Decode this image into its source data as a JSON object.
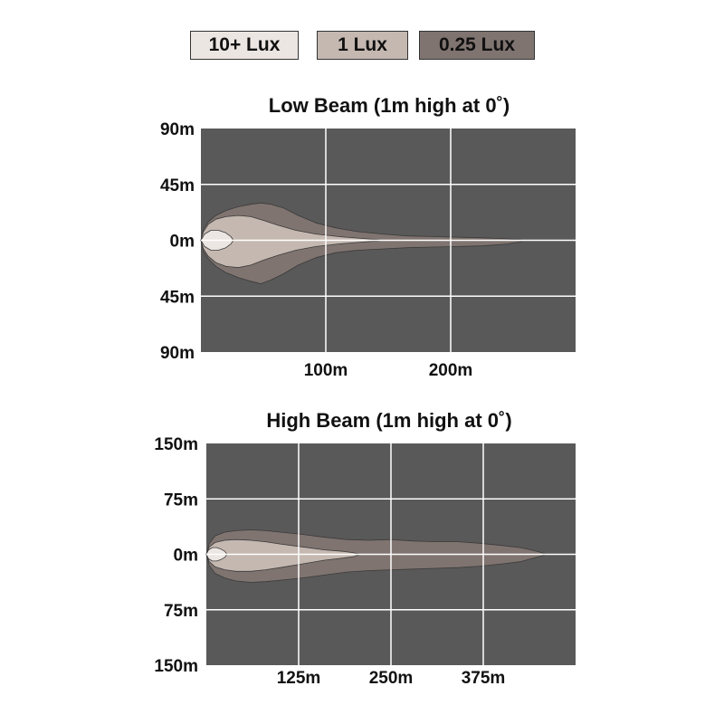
{
  "legend": {
    "items": [
      {
        "label": "10+ Lux",
        "color": "#ece6e2"
      },
      {
        "label": "1 Lux",
        "color": "#c4b8b1"
      },
      {
        "label": "0.25 Lux",
        "color": "#807470"
      }
    ]
  },
  "colors": {
    "plot_background": "#595959",
    "gridline": "#ffffff",
    "lux_10": "#ece6e2",
    "lux_1": "#c4b8b1",
    "lux_025": "#807470"
  },
  "chart_data": [
    {
      "type": "area",
      "title": "Low Beam (1m high at 0˚)",
      "xlim": [
        0,
        300
      ],
      "ylim": [
        -90,
        90
      ],
      "x_ticks": [
        100,
        200
      ],
      "x_tick_labels": [
        "100m",
        "200m"
      ],
      "y_ticks": [
        90,
        45,
        0,
        -45,
        -90
      ],
      "y_tick_labels": [
        "90m",
        "45m",
        "0m",
        "45m",
        "90m"
      ],
      "grid": true,
      "series": [
        {
          "name": "0.25 Lux",
          "x": [
            0,
            2,
            6,
            12,
            20,
            30,
            40,
            48,
            56,
            66,
            78,
            92,
            108,
            125,
            145,
            165,
            185,
            205,
            225,
            245,
            256,
            258
          ],
          "upper": [
            0,
            9,
            15,
            20,
            24,
            27,
            29,
            30,
            29,
            26,
            20,
            14,
            10,
            7,
            5,
            3.5,
            3,
            2.5,
            2,
            1.2,
            0.5,
            0
          ],
          "lower": [
            0,
            -9,
            -15,
            -21,
            -26,
            -30,
            -33,
            -35,
            -32,
            -27,
            -20,
            -14,
            -10,
            -8,
            -7,
            -6,
            -5.5,
            -5,
            -4.5,
            -3,
            -1.2,
            0
          ]
        },
        {
          "name": "1 Lux",
          "x": [
            0,
            2,
            6,
            12,
            20,
            30,
            40,
            50,
            62,
            76,
            92,
            110,
            128,
            142,
            144
          ],
          "upper": [
            0,
            7,
            13,
            17,
            19,
            20,
            19,
            16,
            12,
            8,
            5,
            3,
            1.5,
            0.5,
            0
          ],
          "lower": [
            0,
            -7,
            -13,
            -18,
            -21,
            -22,
            -20,
            -16,
            -12,
            -8,
            -5,
            -3,
            -1.5,
            -0.5,
            0
          ]
        },
        {
          "name": "10+ Lux",
          "x": [
            0,
            3,
            8,
            14,
            20,
            24,
            26
          ],
          "upper": [
            0,
            5,
            8,
            8,
            6,
            3,
            0
          ],
          "lower": [
            0,
            -5,
            -8,
            -8,
            -6,
            -3,
            0
          ]
        }
      ]
    },
    {
      "type": "area",
      "title": "High Beam (1m high at 0˚)",
      "xlim": [
        0,
        500
      ],
      "ylim": [
        -150,
        150
      ],
      "x_ticks": [
        125,
        250,
        375
      ],
      "x_tick_labels": [
        "125m",
        "250m",
        "375m"
      ],
      "y_ticks": [
        150,
        75,
        0,
        -75,
        -150
      ],
      "y_tick_labels": [
        "150m",
        "75m",
        "0m",
        "75m",
        "150m"
      ],
      "grid": true,
      "series": [
        {
          "name": "0.25 Lux",
          "x": [
            0,
            4,
            12,
            25,
            40,
            60,
            80,
            100,
            130,
            160,
            190,
            220,
            250,
            280,
            310,
            340,
            370,
            400,
            425,
            440,
            455,
            460
          ],
          "upper": [
            0,
            15,
            25,
            30,
            32,
            33,
            32,
            30,
            27,
            23,
            20,
            19,
            20,
            18,
            17,
            17,
            15,
            12,
            9,
            6,
            2,
            0
          ],
          "lower": [
            0,
            -15,
            -26,
            -32,
            -36,
            -38,
            -37,
            -35,
            -32,
            -28,
            -24,
            -22,
            -21,
            -20,
            -19,
            -18,
            -16,
            -13,
            -10,
            -6,
            -2,
            0
          ]
        },
        {
          "name": "1 Lux",
          "x": [
            0,
            4,
            12,
            25,
            40,
            60,
            80,
            100,
            130,
            160,
            185,
            200,
            208
          ],
          "upper": [
            0,
            10,
            16,
            19,
            20,
            19,
            17,
            14,
            10,
            6,
            4,
            2,
            0
          ],
          "lower": [
            0,
            -10,
            -17,
            -21,
            -23,
            -23,
            -21,
            -18,
            -13,
            -8,
            -5,
            -3,
            0
          ]
        },
        {
          "name": "10+ Lux",
          "x": [
            0,
            3,
            8,
            14,
            20,
            25,
            28
          ],
          "upper": [
            0,
            6,
            9,
            9,
            7,
            4,
            0
          ],
          "lower": [
            0,
            -6,
            -9,
            -9,
            -7,
            -4,
            0
          ]
        }
      ]
    }
  ]
}
